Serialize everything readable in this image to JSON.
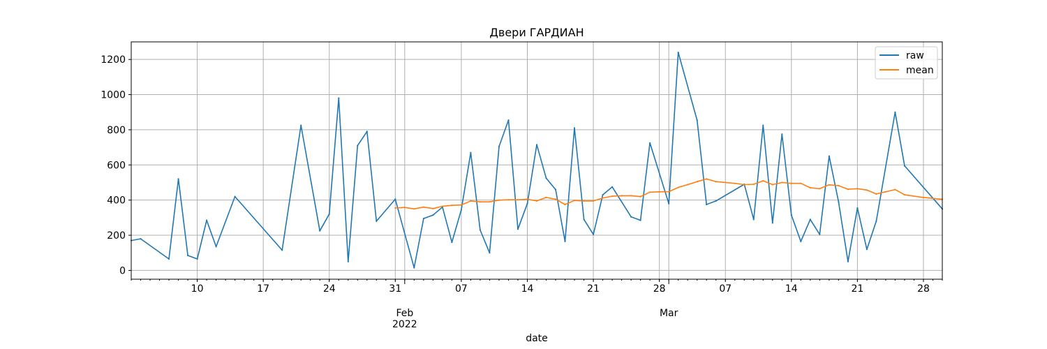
{
  "chart_data": {
    "type": "line",
    "title": "Двери ГАРДИАН",
    "xlabel": "date",
    "ylabel": "",
    "grid": true,
    "legend_position": "top-right",
    "xlim": [
      "2022-01-03",
      "2022-03-30"
    ],
    "ylim": [
      -50,
      1300
    ],
    "yticks": [
      0,
      200,
      400,
      600,
      800,
      1000,
      1200
    ],
    "xticks": [
      {
        "date": "2022-01-10",
        "label": "10",
        "sublabel": ""
      },
      {
        "date": "2022-01-17",
        "label": "17",
        "sublabel": ""
      },
      {
        "date": "2022-01-24",
        "label": "24",
        "sublabel": ""
      },
      {
        "date": "2022-01-31",
        "label": "31",
        "sublabel": ""
      },
      {
        "date": "2022-02-01",
        "label": "Feb",
        "sublabel": "2022"
      },
      {
        "date": "2022-02-07",
        "label": "07",
        "sublabel": ""
      },
      {
        "date": "2022-02-14",
        "label": "14",
        "sublabel": ""
      },
      {
        "date": "2022-02-21",
        "label": "21",
        "sublabel": ""
      },
      {
        "date": "2022-02-28",
        "label": "28",
        "sublabel": ""
      },
      {
        "date": "2022-03-01",
        "label": "Mar",
        "sublabel": ""
      },
      {
        "date": "2022-03-07",
        "label": "07",
        "sublabel": ""
      },
      {
        "date": "2022-03-14",
        "label": "14",
        "sublabel": ""
      },
      {
        "date": "2022-03-21",
        "label": "21",
        "sublabel": ""
      },
      {
        "date": "2022-03-28",
        "label": "28",
        "sublabel": ""
      }
    ],
    "series": [
      {
        "name": "raw",
        "color": "#1f77b4",
        "points": [
          [
            "2022-01-03",
            170
          ],
          [
            "2022-01-04",
            180
          ],
          [
            "2022-01-07",
            65
          ],
          [
            "2022-01-08",
            520
          ],
          [
            "2022-01-09",
            85
          ],
          [
            "2022-01-10",
            65
          ],
          [
            "2022-01-11",
            285
          ],
          [
            "2022-01-12",
            135
          ],
          [
            "2022-01-14",
            420
          ],
          [
            "2022-01-19",
            115
          ],
          [
            "2022-01-21",
            825
          ],
          [
            "2022-01-23",
            225
          ],
          [
            "2022-01-24",
            320
          ],
          [
            "2022-01-25",
            980
          ],
          [
            "2022-01-26",
            50
          ],
          [
            "2022-01-27",
            710
          ],
          [
            "2022-01-28",
            790
          ],
          [
            "2022-01-29",
            280
          ],
          [
            "2022-01-31",
            405
          ],
          [
            "2022-02-02",
            15
          ],
          [
            "2022-02-03",
            295
          ],
          [
            "2022-02-04",
            315
          ],
          [
            "2022-02-05",
            360
          ],
          [
            "2022-02-06",
            160
          ],
          [
            "2022-02-07",
            345
          ],
          [
            "2022-02-08",
            670
          ],
          [
            "2022-02-09",
            230
          ],
          [
            "2022-02-10",
            100
          ],
          [
            "2022-02-11",
            705
          ],
          [
            "2022-02-12",
            855
          ],
          [
            "2022-02-13",
            235
          ],
          [
            "2022-02-14",
            380
          ],
          [
            "2022-02-15",
            715
          ],
          [
            "2022-02-16",
            525
          ],
          [
            "2022-02-17",
            460
          ],
          [
            "2022-02-18",
            165
          ],
          [
            "2022-02-19",
            810
          ],
          [
            "2022-02-20",
            290
          ],
          [
            "2022-02-21",
            205
          ],
          [
            "2022-02-22",
            430
          ],
          [
            "2022-02-23",
            475
          ],
          [
            "2022-02-25",
            305
          ],
          [
            "2022-02-26",
            285
          ],
          [
            "2022-02-27",
            725
          ],
          [
            "2022-03-01",
            380
          ],
          [
            "2022-03-02",
            1240
          ],
          [
            "2022-03-04",
            855
          ],
          [
            "2022-03-05",
            375
          ],
          [
            "2022-03-06",
            395
          ],
          [
            "2022-03-09",
            490
          ],
          [
            "2022-03-10",
            290
          ],
          [
            "2022-03-11",
            825
          ],
          [
            "2022-03-12",
            270
          ],
          [
            "2022-03-13",
            775
          ],
          [
            "2022-03-14",
            315
          ],
          [
            "2022-03-15",
            165
          ],
          [
            "2022-03-16",
            290
          ],
          [
            "2022-03-17",
            205
          ],
          [
            "2022-03-18",
            650
          ],
          [
            "2022-03-19",
            390
          ],
          [
            "2022-03-20",
            50
          ],
          [
            "2022-03-21",
            355
          ],
          [
            "2022-03-22",
            120
          ],
          [
            "2022-03-23",
            280
          ],
          [
            "2022-03-25",
            900
          ],
          [
            "2022-03-26",
            595
          ],
          [
            "2022-03-30",
            350
          ]
        ]
      },
      {
        "name": "mean",
        "color": "#ff7f0e",
        "points": [
          [
            "2022-01-31",
            355
          ],
          [
            "2022-02-01",
            358
          ],
          [
            "2022-02-02",
            350
          ],
          [
            "2022-02-03",
            360
          ],
          [
            "2022-02-04",
            352
          ],
          [
            "2022-02-05",
            365
          ],
          [
            "2022-02-06",
            370
          ],
          [
            "2022-02-07",
            372
          ],
          [
            "2022-02-08",
            395
          ],
          [
            "2022-02-09",
            390
          ],
          [
            "2022-02-10",
            390
          ],
          [
            "2022-02-11",
            400
          ],
          [
            "2022-02-12",
            402
          ],
          [
            "2022-02-13",
            402
          ],
          [
            "2022-02-14",
            405
          ],
          [
            "2022-02-15",
            395
          ],
          [
            "2022-02-16",
            415
          ],
          [
            "2022-02-17",
            405
          ],
          [
            "2022-02-18",
            375
          ],
          [
            "2022-02-19",
            398
          ],
          [
            "2022-02-20",
            395
          ],
          [
            "2022-02-21",
            395
          ],
          [
            "2022-02-22",
            412
          ],
          [
            "2022-02-23",
            422
          ],
          [
            "2022-02-24",
            425
          ],
          [
            "2022-02-25",
            425
          ],
          [
            "2022-02-26",
            420
          ],
          [
            "2022-02-27",
            445
          ],
          [
            "2022-02-28",
            447
          ],
          [
            "2022-03-01",
            448
          ],
          [
            "2022-03-02",
            472
          ],
          [
            "2022-03-03",
            488
          ],
          [
            "2022-03-04",
            505
          ],
          [
            "2022-03-05",
            520
          ],
          [
            "2022-03-06",
            505
          ],
          [
            "2022-03-08",
            495
          ],
          [
            "2022-03-09",
            488
          ],
          [
            "2022-03-10",
            490
          ],
          [
            "2022-03-11",
            510
          ],
          [
            "2022-03-12",
            488
          ],
          [
            "2022-03-13",
            500
          ],
          [
            "2022-03-14",
            495
          ],
          [
            "2022-03-15",
            495
          ],
          [
            "2022-03-16",
            470
          ],
          [
            "2022-03-17",
            465
          ],
          [
            "2022-03-18",
            487
          ],
          [
            "2022-03-19",
            482
          ],
          [
            "2022-03-20",
            462
          ],
          [
            "2022-03-21",
            465
          ],
          [
            "2022-03-22",
            457
          ],
          [
            "2022-03-23",
            435
          ],
          [
            "2022-03-24",
            447
          ],
          [
            "2022-03-25",
            460
          ],
          [
            "2022-03-26",
            430
          ],
          [
            "2022-03-28",
            415
          ],
          [
            "2022-03-30",
            405
          ]
        ]
      }
    ]
  }
}
